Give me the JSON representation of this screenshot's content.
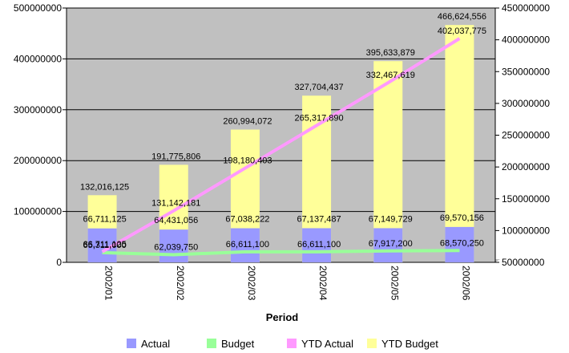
{
  "chart_data": {
    "type": "bar",
    "title": "",
    "xlabel": "Period",
    "categories": [
      "2002/01",
      "2002/02",
      "2002/03",
      "2002/04",
      "2002/05",
      "2002/06"
    ],
    "y_left": {
      "ylim": [
        0,
        500000000
      ],
      "ticks": [
        "0",
        "100000000",
        "200000000",
        "300000000",
        "400000000",
        "500000000"
      ]
    },
    "y_right": {
      "ylim": [
        50000000,
        450000000
      ],
      "ticks": [
        "50000000",
        "100000000",
        "150000000",
        "200000000",
        "250000000",
        "300000000",
        "350000000",
        "400000000",
        "450000000"
      ]
    },
    "grid": true,
    "legend_position": "bottom",
    "series": [
      {
        "name": "Actual",
        "type": "bar",
        "axis": "left",
        "color": "#9999ff",
        "values": [
          66711125,
          64431056,
          67038222,
          67137487,
          67149729,
          69570156
        ],
        "labels": [
          "66,711,125",
          "64,431,056",
          "67,038,222",
          "67,137,487",
          "67,149,729",
          "69,570,156"
        ]
      },
      {
        "name": "Budget",
        "type": "line",
        "axis": "right",
        "color": "#99ff99",
        "values": [
          65311000,
          62039750,
          66611100,
          66611100,
          67917200,
          68570250
        ],
        "labels": [
          "65,311,000",
          "62,039,750",
          "66,611,100",
          "66,611,100",
          "67,917,200",
          "68,570,250"
        ]
      },
      {
        "name": "YTD Actual",
        "type": "line",
        "axis": "right",
        "color": "#ff99ff",
        "values": [
          66711125,
          131142181,
          198180403,
          265317890,
          332467619,
          402037775
        ],
        "labels": [
          "66,711,125",
          "131,142,181",
          "198,180,403",
          "265,317,890",
          "332,467,619",
          "402,037,775"
        ]
      },
      {
        "name": "YTD Budget",
        "type": "bar",
        "axis": "left",
        "color": "#ffff99",
        "values": [
          132016125,
          191775806,
          260994072,
          327704437,
          395633879,
          466624556
        ],
        "labels": [
          "132,016,125",
          "191,775,806",
          "260,994,072",
          "327,704,437",
          "395,633,879",
          "466,624,556"
        ]
      }
    ]
  }
}
